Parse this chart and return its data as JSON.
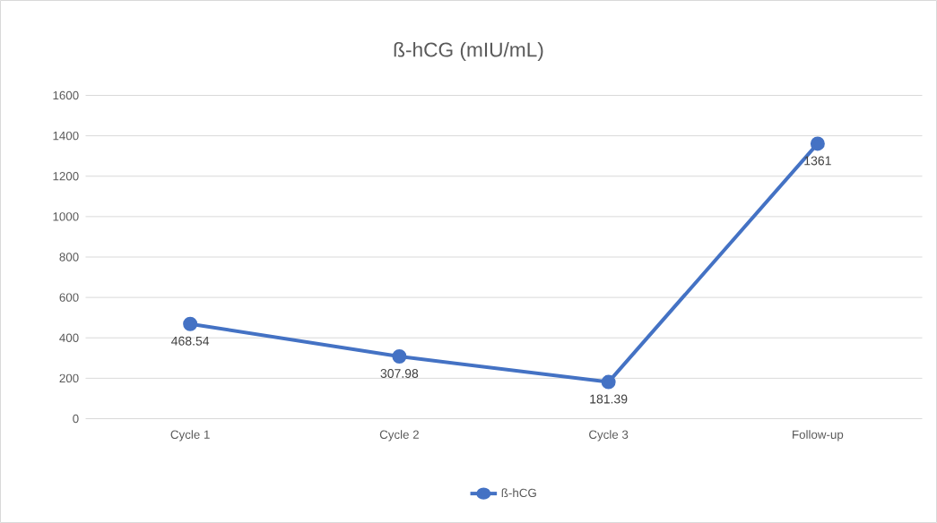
{
  "chart_data": {
    "type": "line",
    "title": "ß-hCG (mIU/mL)",
    "categories": [
      "Cycle 1",
      "Cycle 2",
      "Cycle 3",
      "Follow-up"
    ],
    "series": [
      {
        "name": "ß-hCG",
        "color": "#4472c4",
        "values": [
          468.54,
          307.98,
          181.39,
          1361
        ],
        "value_labels": [
          "468.54",
          "307.98",
          "181.39",
          "1361"
        ]
      }
    ],
    "ylim": [
      0,
      1600
    ],
    "yticks": [
      0,
      200,
      400,
      600,
      800,
      1000,
      1200,
      1400,
      1600
    ],
    "grid": "y",
    "legend": "bottom",
    "marker": "circle",
    "line_style": "solid"
  }
}
